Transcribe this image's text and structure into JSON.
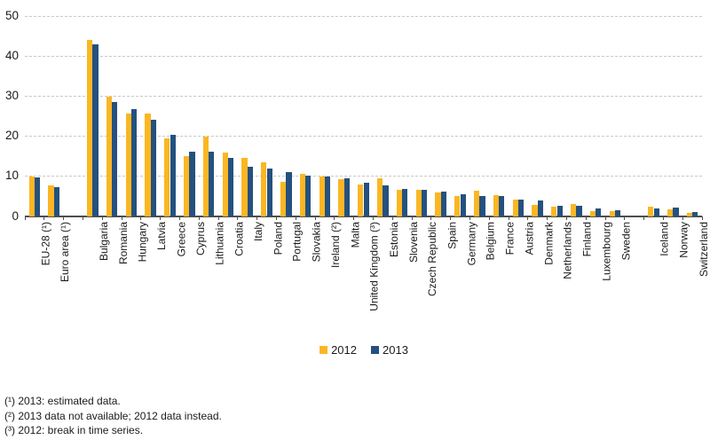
{
  "chart_data": {
    "type": "bar",
    "title": "",
    "xlabel": "",
    "ylabel": "",
    "ylim": [
      0,
      50
    ],
    "yticks": [
      0,
      10,
      20,
      30,
      40,
      50
    ],
    "grid": "horizontal-dashed",
    "legend_position": "bottom-center",
    "categories": [
      "EU-28 (¹)",
      "Euro area (¹)",
      "Bulgaria",
      "Romania",
      "Hungary",
      "Latvia",
      "Greece",
      "Cyprus",
      "Lithuania",
      "Croatia",
      "Italy",
      "Poland",
      "Portugal",
      "Slovakia",
      "Ireland (²)",
      "Malta",
      "United Kingdom (³)",
      "Estonia",
      "Slovenia",
      "Czech Republic",
      "Spain",
      "Germany",
      "Belgium",
      "France",
      "Austria",
      "Denmark",
      "Netherlands",
      "Finland",
      "Luxembourg",
      "Sweden",
      "Iceland",
      "Norway",
      "Switzerland"
    ],
    "separator_gap_after_indices": [
      1,
      29
    ],
    "series": [
      {
        "name": "2012",
        "color": "#FBB623",
        "values": [
          9.9,
          7.6,
          44.1,
          29.9,
          25.7,
          25.6,
          19.5,
          15.0,
          19.8,
          15.9,
          14.5,
          13.5,
          8.6,
          10.5,
          9.8,
          9.2,
          7.8,
          9.4,
          6.6,
          6.6,
          5.8,
          4.9,
          6.3,
          5.3,
          4.0,
          2.8,
          2.3,
          2.9,
          1.3,
          1.3,
          2.3,
          1.7,
          0.8
        ]
      },
      {
        "name": "2013",
        "color": "#24517F",
        "values": [
          9.6,
          7.3,
          43.0,
          28.5,
          26.8,
          24.0,
          20.3,
          16.1,
          16.0,
          14.5,
          12.4,
          11.9,
          10.9,
          10.2,
          9.8,
          9.5,
          8.3,
          7.6,
          6.7,
          6.6,
          6.2,
          5.4,
          5.1,
          5.1,
          4.2,
          3.8,
          2.5,
          2.5,
          1.8,
          1.4,
          1.8,
          2.0,
          1.1
        ]
      }
    ]
  },
  "colors": {
    "gridline": "#C9C9C9",
    "axis": "#4D4D4D",
    "text": "#1A1A1A"
  },
  "footnotes": [
    "(¹) 2013: estimated data.",
    "(²) 2013 data not available; 2012 data instead.",
    "(³) 2012: break in time series."
  ]
}
